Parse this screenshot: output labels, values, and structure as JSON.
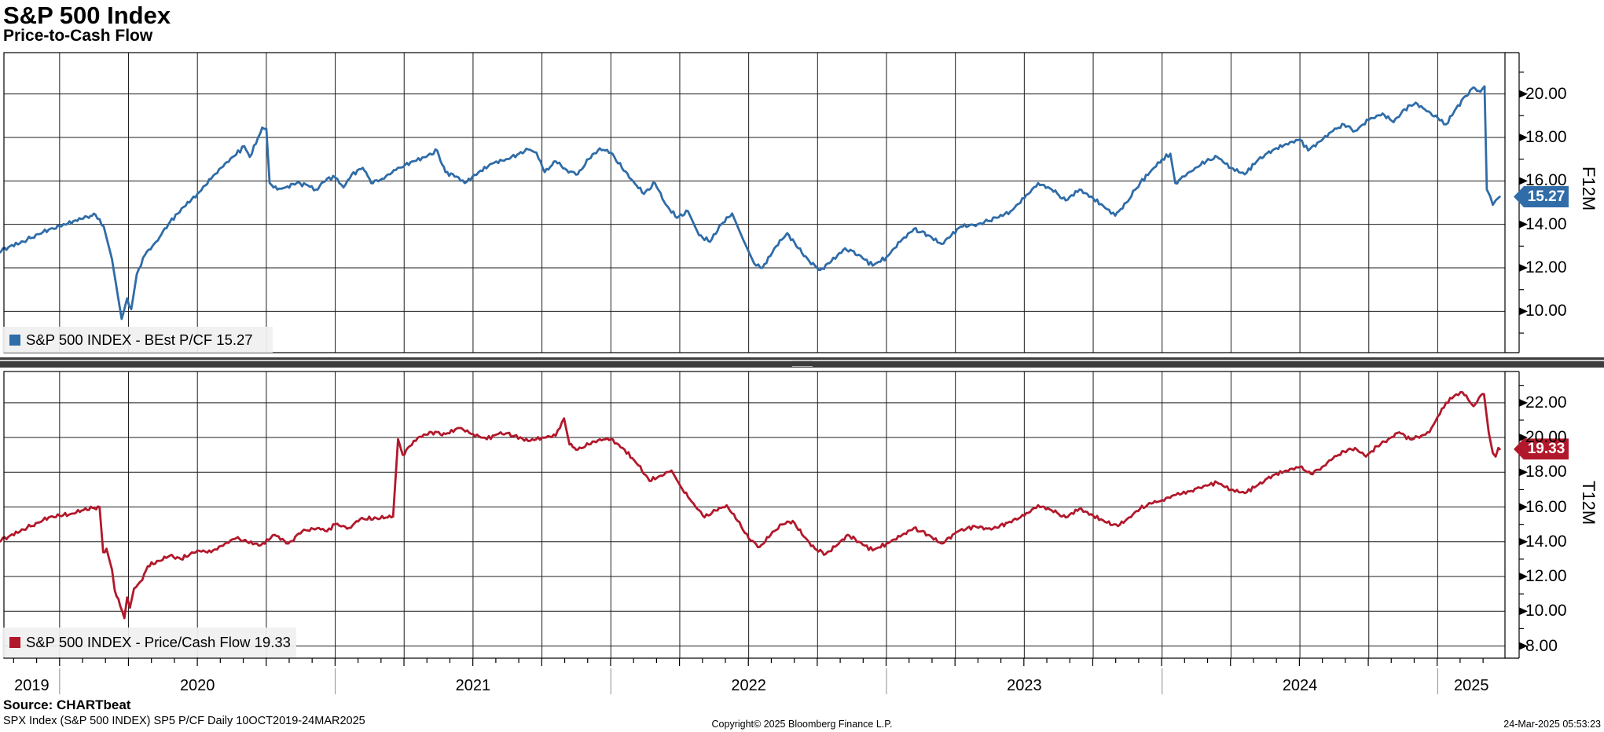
{
  "header": {
    "title": "S&P 500 Index",
    "subtitle": "Price-to-Cash Flow"
  },
  "footer": {
    "source": "Source: CHARTbeat",
    "description": "SPX Index (S&P 500 INDEX) SP5 P/CF  Daily 10OCT2019-24MAR2025",
    "copyright": "Copyright© 2025 Bloomberg Finance L.P.",
    "timestamp": "24-Mar-2025 05:53:23"
  },
  "colors": {
    "blue": "#2f6ca8",
    "red": "#b2182b",
    "grid": "#1c1c1c",
    "frame": "#000000",
    "legend_bg": "#f0f0f0",
    "divider": "#3d3d3d",
    "year_separator": "#a0a0a0"
  },
  "x_axis": {
    "start": 2019.798,
    "end": 2025.244,
    "year_labels": [
      "2019",
      "2020",
      "2021",
      "2022",
      "2023",
      "2024",
      "2025"
    ],
    "year_boundaries": [
      2020,
      2021,
      2022,
      2023,
      2024,
      2025
    ],
    "gridline_interval_years": 0.25,
    "minor_tick_interval_years": 0.0833
  },
  "chart_data": [
    {
      "type": "line",
      "panel": "top",
      "legend": "S&P 500 INDEX - BEst P/CF 15.27",
      "series_name": "BEst P/CF",
      "axis_title": "F12M",
      "last_value_label": "15.27",
      "last_value": 15.27,
      "line_color": "#2f6ca8",
      "ylim": [
        8.1,
        21.9
      ],
      "yticks": [
        {
          "value": 10,
          "label": "10.00"
        },
        {
          "value": 12,
          "label": "12.00"
        },
        {
          "value": 14,
          "label": "14.00"
        },
        {
          "value": 16,
          "label": "16.00"
        },
        {
          "value": 18,
          "label": "18.00"
        },
        {
          "value": 20,
          "label": "20.00"
        }
      ],
      "minor_tick_step": 1,
      "points": [
        [
          2019.775,
          12.7
        ],
        [
          2019.82,
          13.0
        ],
        [
          2019.87,
          13.2
        ],
        [
          2019.92,
          13.55
        ],
        [
          2019.96,
          13.75
        ],
        [
          2020.0,
          13.9
        ],
        [
          2020.05,
          14.15
        ],
        [
          2020.1,
          14.35
        ],
        [
          2020.13,
          14.45
        ],
        [
          2020.16,
          13.9
        ],
        [
          2020.19,
          12.4
        ],
        [
          2020.225,
          9.65
        ],
        [
          2020.245,
          10.6
        ],
        [
          2020.26,
          10.1
        ],
        [
          2020.28,
          11.7
        ],
        [
          2020.31,
          12.6
        ],
        [
          2020.35,
          13.2
        ],
        [
          2020.4,
          14.1
        ],
        [
          2020.45,
          14.8
        ],
        [
          2020.5,
          15.4
        ],
        [
          2020.55,
          16.1
        ],
        [
          2020.6,
          16.8
        ],
        [
          2020.64,
          17.2
        ],
        [
          2020.67,
          17.6
        ],
        [
          2020.69,
          17.1
        ],
        [
          2020.72,
          18.0
        ],
        [
          2020.735,
          18.45
        ],
        [
          2020.75,
          18.4
        ],
        [
          2020.762,
          15.9
        ],
        [
          2020.79,
          15.6
        ],
        [
          2020.82,
          15.7
        ],
        [
          2020.86,
          15.9
        ],
        [
          2020.9,
          15.8
        ],
        [
          2020.93,
          15.6
        ],
        [
          2020.97,
          16.1
        ],
        [
          2021.0,
          16.15
        ],
        [
          2021.03,
          15.7
        ],
        [
          2021.06,
          16.3
        ],
        [
          2021.1,
          16.6
        ],
        [
          2021.13,
          15.9
        ],
        [
          2021.17,
          16.1
        ],
        [
          2021.22,
          16.5
        ],
        [
          2021.28,
          16.9
        ],
        [
          2021.33,
          17.1
        ],
        [
          2021.37,
          17.4
        ],
        [
          2021.4,
          16.4
        ],
        [
          2021.44,
          16.2
        ],
        [
          2021.47,
          15.9
        ],
        [
          2021.52,
          16.4
        ],
        [
          2021.57,
          16.8
        ],
        [
          2021.62,
          17.0
        ],
        [
          2021.66,
          17.2
        ],
        [
          2021.7,
          17.45
        ],
        [
          2021.73,
          17.3
        ],
        [
          2021.76,
          16.4
        ],
        [
          2021.8,
          16.9
        ],
        [
          2021.84,
          16.5
        ],
        [
          2021.88,
          16.3
        ],
        [
          2021.92,
          17.0
        ],
        [
          2021.96,
          17.5
        ],
        [
          2022.0,
          17.3
        ],
        [
          2022.04,
          16.6
        ],
        [
          2022.08,
          16.0
        ],
        [
          2022.12,
          15.4
        ],
        [
          2022.16,
          15.9
        ],
        [
          2022.2,
          14.9
        ],
        [
          2022.24,
          14.3
        ],
        [
          2022.28,
          14.6
        ],
        [
          2022.32,
          13.5
        ],
        [
          2022.36,
          13.2
        ],
        [
          2022.4,
          14.0
        ],
        [
          2022.44,
          14.5
        ],
        [
          2022.48,
          13.3
        ],
        [
          2022.52,
          12.2
        ],
        [
          2022.55,
          12.0
        ],
        [
          2022.6,
          13.0
        ],
        [
          2022.64,
          13.6
        ],
        [
          2022.68,
          12.9
        ],
        [
          2022.72,
          12.3
        ],
        [
          2022.76,
          11.9
        ],
        [
          2022.8,
          12.3
        ],
        [
          2022.85,
          12.9
        ],
        [
          2022.9,
          12.6
        ],
        [
          2022.95,
          12.1
        ],
        [
          2023.0,
          12.5
        ],
        [
          2023.05,
          13.2
        ],
        [
          2023.1,
          13.8
        ],
        [
          2023.15,
          13.5
        ],
        [
          2023.2,
          13.1
        ],
        [
          2023.27,
          13.9
        ],
        [
          2023.33,
          14.0
        ],
        [
          2023.4,
          14.3
        ],
        [
          2023.45,
          14.6
        ],
        [
          2023.5,
          15.2
        ],
        [
          2023.55,
          15.9
        ],
        [
          2023.6,
          15.6
        ],
        [
          2023.65,
          15.1
        ],
        [
          2023.7,
          15.6
        ],
        [
          2023.75,
          15.2
        ],
        [
          2023.8,
          14.7
        ],
        [
          2023.83,
          14.4
        ],
        [
          2023.87,
          15.0
        ],
        [
          2023.92,
          15.9
        ],
        [
          2023.97,
          16.6
        ],
        [
          2024.0,
          17.0
        ],
        [
          2024.03,
          17.25
        ],
        [
          2024.048,
          15.9
        ],
        [
          2024.08,
          16.2
        ],
        [
          2024.12,
          16.6
        ],
        [
          2024.16,
          16.9
        ],
        [
          2024.2,
          17.1
        ],
        [
          2024.25,
          16.6
        ],
        [
          2024.3,
          16.3
        ],
        [
          2024.35,
          17.0
        ],
        [
          2024.4,
          17.4
        ],
        [
          2024.45,
          17.7
        ],
        [
          2024.5,
          17.9
        ],
        [
          2024.53,
          17.4
        ],
        [
          2024.57,
          17.8
        ],
        [
          2024.62,
          18.3
        ],
        [
          2024.66,
          18.6
        ],
        [
          2024.7,
          18.3
        ],
        [
          2024.75,
          18.8
        ],
        [
          2024.8,
          19.1
        ],
        [
          2024.84,
          18.7
        ],
        [
          2024.88,
          19.3
        ],
        [
          2024.92,
          19.6
        ],
        [
          2024.96,
          19.2
        ],
        [
          2025.0,
          18.9
        ],
        [
          2025.03,
          18.6
        ],
        [
          2025.06,
          19.2
        ],
        [
          2025.1,
          19.9
        ],
        [
          2025.13,
          20.3
        ],
        [
          2025.155,
          20.1
        ],
        [
          2025.17,
          20.35
        ],
        [
          2025.178,
          15.6
        ],
        [
          2025.19,
          15.3
        ],
        [
          2025.2,
          14.9
        ],
        [
          2025.21,
          15.1
        ],
        [
          2025.225,
          15.27
        ]
      ]
    },
    {
      "type": "line",
      "panel": "bottom",
      "legend": "S&P 500 INDEX - Price/Cash Flow 19.33",
      "series_name": "Price/Cash Flow",
      "axis_title": "T12M",
      "last_value_label": "19.33",
      "last_value": 19.33,
      "line_color": "#b2182b",
      "ylim": [
        7.3,
        23.8
      ],
      "yticks": [
        {
          "value": 8,
          "label": "8.00"
        },
        {
          "value": 10,
          "label": "10.00"
        },
        {
          "value": 12,
          "label": "12.00"
        },
        {
          "value": 14,
          "label": "14.00"
        },
        {
          "value": 16,
          "label": "16.00"
        },
        {
          "value": 18,
          "label": "18.00"
        },
        {
          "value": 20,
          "label": "20.00"
        },
        {
          "value": 22,
          "label": "22.00"
        }
      ],
      "minor_tick_step": 1,
      "points": [
        [
          2019.775,
          14.0
        ],
        [
          2019.82,
          14.35
        ],
        [
          2019.87,
          14.7
        ],
        [
          2019.92,
          15.1
        ],
        [
          2019.96,
          15.4
        ],
        [
          2020.0,
          15.5
        ],
        [
          2020.04,
          15.6
        ],
        [
          2020.08,
          15.8
        ],
        [
          2020.12,
          15.95
        ],
        [
          2020.145,
          16.0
        ],
        [
          2020.158,
          13.4
        ],
        [
          2020.17,
          13.6
        ],
        [
          2020.19,
          12.4
        ],
        [
          2020.2,
          11.2
        ],
        [
          2020.22,
          10.3
        ],
        [
          2020.235,
          9.6
        ],
        [
          2020.245,
          10.8
        ],
        [
          2020.255,
          10.2
        ],
        [
          2020.27,
          11.3
        ],
        [
          2020.3,
          11.8
        ],
        [
          2020.32,
          12.6
        ],
        [
          2020.36,
          12.9
        ],
        [
          2020.4,
          13.2
        ],
        [
          2020.44,
          13.0
        ],
        [
          2020.5,
          13.5
        ],
        [
          2020.55,
          13.4
        ],
        [
          2020.6,
          13.9
        ],
        [
          2020.64,
          14.2
        ],
        [
          2020.68,
          14.0
        ],
        [
          2020.73,
          13.8
        ],
        [
          2020.78,
          14.4
        ],
        [
          2020.83,
          13.9
        ],
        [
          2020.88,
          14.6
        ],
        [
          2020.94,
          14.8
        ],
        [
          2020.97,
          14.6
        ],
        [
          2021.0,
          15.0
        ],
        [
          2021.05,
          14.8
        ],
        [
          2021.09,
          15.3
        ],
        [
          2021.15,
          15.35
        ],
        [
          2021.21,
          15.45
        ],
        [
          2021.228,
          19.9
        ],
        [
          2021.245,
          19.0
        ],
        [
          2021.27,
          19.5
        ],
        [
          2021.3,
          20.0
        ],
        [
          2021.35,
          20.3
        ],
        [
          2021.4,
          20.2
        ],
        [
          2021.45,
          20.55
        ],
        [
          2021.5,
          20.2
        ],
        [
          2021.55,
          19.9
        ],
        [
          2021.6,
          20.3
        ],
        [
          2021.65,
          20.1
        ],
        [
          2021.7,
          19.8
        ],
        [
          2021.75,
          20.0
        ],
        [
          2021.8,
          20.1
        ],
        [
          2021.83,
          21.1
        ],
        [
          2021.85,
          19.6
        ],
        [
          2021.88,
          19.3
        ],
        [
          2021.92,
          19.6
        ],
        [
          2021.96,
          19.9
        ],
        [
          2022.0,
          19.9
        ],
        [
          2022.05,
          19.3
        ],
        [
          2022.1,
          18.4
        ],
        [
          2022.14,
          17.5
        ],
        [
          2022.18,
          17.8
        ],
        [
          2022.22,
          18.1
        ],
        [
          2022.26,
          17.0
        ],
        [
          2022.3,
          16.2
        ],
        [
          2022.34,
          15.4
        ],
        [
          2022.38,
          15.8
        ],
        [
          2022.42,
          16.1
        ],
        [
          2022.46,
          15.2
        ],
        [
          2022.5,
          14.2
        ],
        [
          2022.54,
          13.7
        ],
        [
          2022.58,
          14.4
        ],
        [
          2022.62,
          15.0
        ],
        [
          2022.66,
          15.2
        ],
        [
          2022.7,
          14.3
        ],
        [
          2022.74,
          13.6
        ],
        [
          2022.78,
          13.3
        ],
        [
          2022.82,
          13.8
        ],
        [
          2022.86,
          14.4
        ],
        [
          2022.9,
          14.0
        ],
        [
          2022.95,
          13.5
        ],
        [
          2023.0,
          13.9
        ],
        [
          2023.05,
          14.3
        ],
        [
          2023.1,
          14.8
        ],
        [
          2023.15,
          14.4
        ],
        [
          2023.2,
          13.9
        ],
        [
          2023.26,
          14.6
        ],
        [
          2023.32,
          14.9
        ],
        [
          2023.38,
          14.7
        ],
        [
          2023.44,
          15.1
        ],
        [
          2023.5,
          15.5
        ],
        [
          2023.55,
          16.1
        ],
        [
          2023.6,
          15.8
        ],
        [
          2023.65,
          15.4
        ],
        [
          2023.7,
          15.9
        ],
        [
          2023.75,
          15.5
        ],
        [
          2023.8,
          15.1
        ],
        [
          2023.84,
          14.9
        ],
        [
          2023.88,
          15.4
        ],
        [
          2023.92,
          15.9
        ],
        [
          2023.96,
          16.2
        ],
        [
          2024.0,
          16.4
        ],
        [
          2024.05,
          16.7
        ],
        [
          2024.1,
          16.9
        ],
        [
          2024.15,
          17.2
        ],
        [
          2024.2,
          17.4
        ],
        [
          2024.25,
          17.0
        ],
        [
          2024.3,
          16.8
        ],
        [
          2024.35,
          17.3
        ],
        [
          2024.4,
          17.8
        ],
        [
          2024.45,
          18.1
        ],
        [
          2024.5,
          18.3
        ],
        [
          2024.54,
          17.9
        ],
        [
          2024.58,
          18.3
        ],
        [
          2024.62,
          18.8
        ],
        [
          2024.66,
          19.2
        ],
        [
          2024.7,
          19.4
        ],
        [
          2024.74,
          18.9
        ],
        [
          2024.78,
          19.5
        ],
        [
          2024.82,
          19.9
        ],
        [
          2024.86,
          20.3
        ],
        [
          2024.9,
          19.9
        ],
        [
          2024.94,
          20.1
        ],
        [
          2024.97,
          20.3
        ],
        [
          2025.0,
          21.2
        ],
        [
          2025.03,
          22.0
        ],
        [
          2025.06,
          22.4
        ],
        [
          2025.09,
          22.6
        ],
        [
          2025.11,
          22.2
        ],
        [
          2025.13,
          21.8
        ],
        [
          2025.15,
          22.3
        ],
        [
          2025.168,
          22.5
        ],
        [
          2025.185,
          20.3
        ],
        [
          2025.2,
          19.1
        ],
        [
          2025.21,
          18.9
        ],
        [
          2025.22,
          19.4
        ],
        [
          2025.225,
          19.33
        ]
      ]
    }
  ]
}
